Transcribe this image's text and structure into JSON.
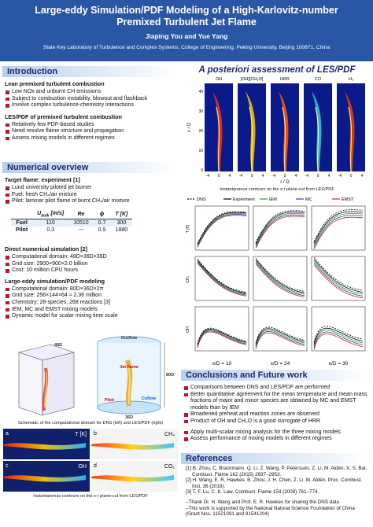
{
  "header": {
    "title": "Large-eddy Simulation/PDF Modeling of a High-Karlovitz-number Premixed Turbulent Jet Flame",
    "authors": "Jiaping You and Yue Yang",
    "affiliation": "State Key Laboratory of Turbulence and Complex Systems, College of Engineering, Peking University, Beijing 100871, China"
  },
  "introduction": {
    "heading": "Introduction",
    "sections": [
      {
        "title": "Lean premixed turbulent combustion",
        "items": [
          "Low NOx and unburnt CH emissions",
          "Subject to combustion instability, blowout and flashback",
          "Involve complex turbulence-chemistry interactions"
        ]
      },
      {
        "title": "LES/PDF of premixed turbulent combustion",
        "items": [
          "Relatively few PDF-based studies",
          "Need resolve flame structure and propagation",
          "Assess mixing models in different regimes"
        ]
      }
    ]
  },
  "numerical": {
    "heading": "Numerical overview",
    "target": {
      "title": "Target flame: experiment [1]",
      "items": [
        "Lund university piloted jet burner",
        "Fuel: fresh CH₄/air mixture",
        "Pilot: laminar pilot flame of burnt CH₄/air mixture"
      ]
    },
    "table": {
      "corner": "",
      "header": [
        {
          "symbol": "U",
          "sub": "bulk",
          "unit": " [m/s]"
        },
        "Re",
        "ϕ",
        "T [K]"
      ],
      "rows": [
        [
          "Fuel",
          "110",
          "10510",
          "0.7",
          "300"
        ],
        [
          "Pilot",
          "0.3",
          "---",
          "0.9",
          "1880"
        ]
      ]
    },
    "dns": {
      "title": "Direct numerical simulation [2]",
      "items": [
        "Computational domain: 48D×36D×36D",
        "Grid size: 2900×900×2.0 billion",
        "Cost: 10 million CPU hours"
      ]
    },
    "les": {
      "title": "Large-eddy simulation/PDF modeling",
      "items": [
        "Computational domain: 80D×36D×2π",
        "Grid size: 256×144×64 ≈ 2.36 million",
        "Chemistry: 28-species, 268 reactions [3]",
        "IEM, MC and EMST mixing models",
        "Dynamic model for scalar mixing time scale"
      ]
    },
    "schematic": {
      "labels": [
        "Outflow",
        "Jet flame",
        "Pilot",
        "Coflow",
        "80D",
        "36D",
        "48D"
      ],
      "caption": "Schematic of the computational domain for DNS (left) and LES/PDF (right)"
    },
    "contours": {
      "panels": [
        {
          "letter": "a",
          "label": "T [K]"
        },
        {
          "letter": "b",
          "label": "CH₄"
        },
        {
          "letter": "c",
          "label": "OH"
        },
        {
          "letter": "d",
          "label": "CO₂"
        }
      ],
      "caption": "Instantaneous contours on the x-r plane-cut from LES/PDF"
    }
  },
  "assessment": {
    "heading": "A posteriori assessment of LES/PDF",
    "contours": {
      "labels": [
        "OH",
        "[OH][CH₂O]",
        "HRR",
        "CO",
        "H₂"
      ],
      "ylabel": "x / D",
      "xlabel": "r / D",
      "yticks": [
        "40",
        "30",
        "20",
        "10",
        "0"
      ],
      "xticks": [
        "-4",
        "0",
        "4"
      ],
      "caption": "Instantaneous contours on the x-r plane-cut from LES/PDF"
    },
    "legend": [
      "DNS",
      "Experiment",
      "IEM",
      "MC",
      "EMST"
    ],
    "rows": [
      "T [K]",
      "CH₄",
      "OH"
    ],
    "columns": [
      "x/D = 10",
      "x/D = 24",
      "x/D = 30"
    ]
  },
  "conclusions": {
    "heading": "Conclusions and Future work",
    "items": [
      "Comparisons between DNS and LES/PDF are performed",
      "Better quantitative agreement for the mean temperature and mean mass fractions of major and minor species are obtained by MC and EMST models than by IEM",
      "Broadened preheat and reaction zones are observed",
      "Product of OH and CH₂O is a good surrogate of HRR"
    ],
    "future": [
      "Apply multi-scalar mixing analysis for the three mixing models",
      "Assess performance of mixing models in different regimes"
    ]
  },
  "references": {
    "heading": "References",
    "items": [
      "[1] B. Zhou, C. Brackmann, Q. Li, Z. Wang, P. Petersson, Z. Li, M. Aldén, X. S. Bai, Combust. Flame 162 (2015) 2937–2953.",
      "[2] H. Wang, E. R. Hawkes, B. Zhou, J. H. Chen, Z. Li, M. Aldén, Proc. Combust. Inst. 36 (2016).",
      "[3] T. F. Lu, C. K. Law, Combust. Flame 154 (2008) 761–774."
    ],
    "thanks": [
      "–Thank Dr. H. Wang and Prof. E. R. Hawkes for sharing the DNS data",
      "–This work is supported by the National Natural Science Foundation of China (Grant Nos. 11521091 and 91541204)"
    ]
  }
}
